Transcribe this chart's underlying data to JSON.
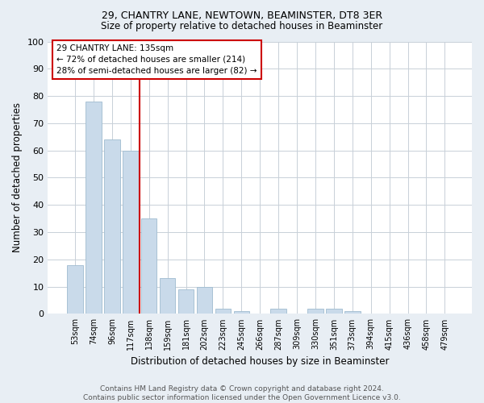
{
  "title": "29, CHANTRY LANE, NEWTOWN, BEAMINSTER, DT8 3ER",
  "subtitle": "Size of property relative to detached houses in Beaminster",
  "xlabel": "Distribution of detached houses by size in Beaminster",
  "ylabel": "Number of detached properties",
  "categories": [
    "53sqm",
    "74sqm",
    "96sqm",
    "117sqm",
    "138sqm",
    "159sqm",
    "181sqm",
    "202sqm",
    "223sqm",
    "245sqm",
    "266sqm",
    "287sqm",
    "309sqm",
    "330sqm",
    "351sqm",
    "373sqm",
    "394sqm",
    "415sqm",
    "436sqm",
    "458sqm",
    "479sqm"
  ],
  "values": [
    18,
    78,
    64,
    60,
    35,
    13,
    9,
    10,
    2,
    1,
    0,
    2,
    0,
    2,
    2,
    1,
    0,
    0,
    0,
    0,
    0
  ],
  "bar_color": "#c9daea",
  "bar_edge_color": "#a0bcd0",
  "vline_color": "#cc0000",
  "annotation_text": "29 CHANTRY LANE: 135sqm\n← 72% of detached houses are smaller (214)\n28% of semi-detached houses are larger (82) →",
  "annotation_box_color": "#ffffff",
  "annotation_box_edge_color": "#cc0000",
  "ylim": [
    0,
    100
  ],
  "yticks": [
    0,
    10,
    20,
    30,
    40,
    50,
    60,
    70,
    80,
    90,
    100
  ],
  "footer": "Contains HM Land Registry data © Crown copyright and database right 2024.\nContains public sector information licensed under the Open Government Licence v3.0.",
  "bg_color": "#e8eef4",
  "plot_bg_color": "#ffffff",
  "grid_color": "#c8d0d8"
}
